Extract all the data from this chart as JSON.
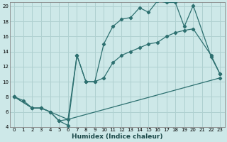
{
  "xlabel": "Humidex (Indice chaleur)",
  "bg_color": "#cde8e8",
  "grid_color": "#afd0d0",
  "line_color": "#2d7070",
  "xlim": [
    -0.5,
    23.5
  ],
  "ylim": [
    4,
    20.5
  ],
  "xticks": [
    0,
    1,
    2,
    3,
    4,
    5,
    6,
    7,
    8,
    9,
    10,
    11,
    12,
    13,
    14,
    15,
    16,
    17,
    18,
    19,
    20,
    21,
    22,
    23
  ],
  "yticks": [
    4,
    6,
    8,
    10,
    12,
    14,
    16,
    18,
    20
  ],
  "line1_x": [
    0,
    1,
    2,
    3,
    4,
    5,
    6,
    7,
    8,
    9,
    10,
    11,
    12,
    13,
    14,
    15,
    16,
    17,
    18,
    19,
    20,
    22,
    23
  ],
  "line1_y": [
    8,
    7.5,
    6.5,
    6.5,
    6,
    4.8,
    4.2,
    13.5,
    10,
    10,
    15,
    17.3,
    18.3,
    18.5,
    19.8,
    19.2,
    20.7,
    20.5,
    20.5,
    17.3,
    20.1,
    13.3,
    11
  ],
  "line2_x": [
    0,
    2,
    3,
    6,
    7,
    8,
    9,
    10,
    11,
    12,
    13,
    14,
    15,
    16,
    17,
    18,
    19,
    20,
    22,
    23
  ],
  "line2_y": [
    8,
    6.5,
    6.5,
    5,
    13.5,
    10,
    10,
    10.5,
    12.5,
    13.5,
    14,
    14.5,
    15,
    15.2,
    16,
    16.5,
    16.8,
    17,
    13.5,
    11
  ],
  "line3_x": [
    0,
    2,
    3,
    4,
    5,
    6,
    23
  ],
  "line3_y": [
    8,
    6.5,
    6.5,
    6,
    4.8,
    5,
    10.5
  ]
}
